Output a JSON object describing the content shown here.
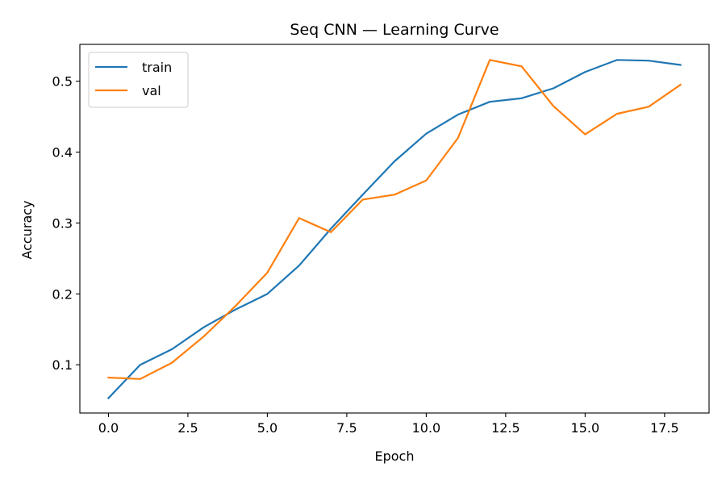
{
  "chart_data": {
    "type": "line",
    "title": "Seq CNN — Learning Curve",
    "xlabel": "Epoch",
    "ylabel": "Accuracy",
    "xlim": [
      -0.9,
      18.9
    ],
    "ylim": [
      0.032,
      0.552
    ],
    "xticks": [
      0,
      2.5,
      5,
      7.5,
      10,
      12.5,
      15,
      17.5
    ],
    "xtick_labels": [
      "0.0",
      "2.5",
      "5.0",
      "7.5",
      "10.0",
      "12.5",
      "15.0",
      "17.5"
    ],
    "yticks": [
      0.1,
      0.2,
      0.3,
      0.4,
      0.5
    ],
    "ytick_labels": [
      "0.1",
      "0.2",
      "0.3",
      "0.4",
      "0.5"
    ],
    "grid": false,
    "legend_position": "top-left",
    "x": [
      0,
      1,
      2,
      3,
      4,
      5,
      6,
      7,
      8,
      9,
      10,
      11,
      12,
      13,
      14,
      15,
      16,
      17,
      18
    ],
    "series": [
      {
        "name": "train",
        "color": "#1f77b4",
        "values": [
          0.053,
          0.1,
          0.122,
          0.153,
          0.178,
          0.2,
          0.24,
          0.292,
          0.34,
          0.387,
          0.426,
          0.453,
          0.471,
          0.476,
          0.49,
          0.513,
          0.53,
          0.529,
          0.523
        ]
      },
      {
        "name": "val",
        "color": "#ff7f0e",
        "values": [
          0.082,
          0.08,
          0.103,
          0.14,
          0.183,
          0.23,
          0.307,
          0.287,
          0.333,
          0.34,
          0.36,
          0.42,
          0.53,
          0.521,
          0.465,
          0.425,
          0.454,
          0.464,
          0.495
        ]
      }
    ]
  }
}
